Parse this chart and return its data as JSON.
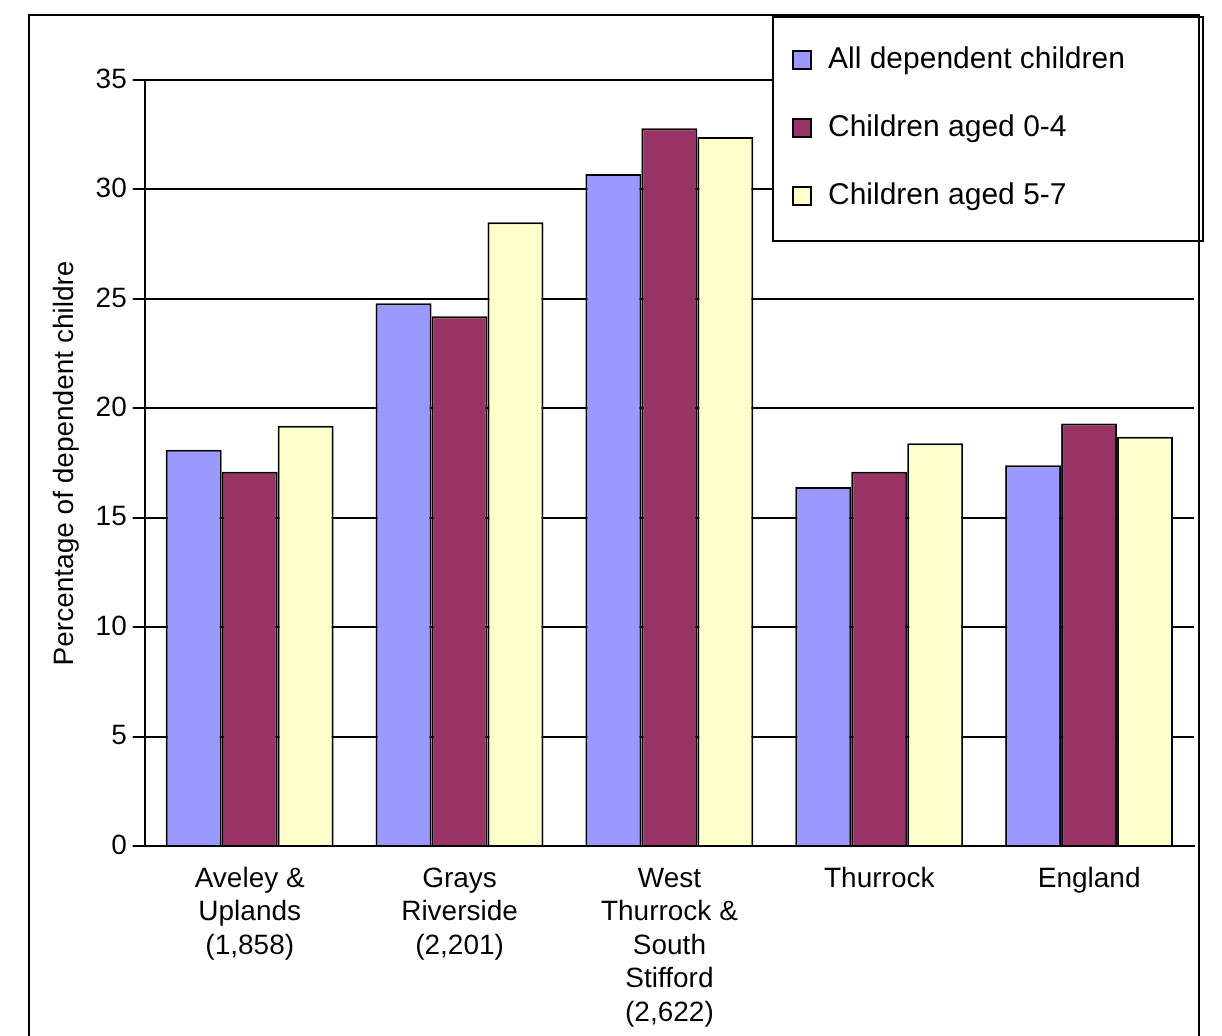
{
  "chart_data": {
    "type": "bar",
    "ylabel": "Percentage of dependent childre",
    "categories": [
      "Aveley &\nUplands\n(1,858)",
      "Grays\nRiverside\n(2,201)",
      "West\nThurrock &\nSouth\nStifford\n(2,622)",
      "Thurrock",
      "England"
    ],
    "series": [
      {
        "name": "All dependent children",
        "color": "#9999ff",
        "values": [
          18.1,
          24.8,
          30.7,
          16.4,
          17.4
        ]
      },
      {
        "name": "Children aged 0-4",
        "color": "#993366",
        "values": [
          17.1,
          24.2,
          32.8,
          17.1,
          19.3
        ]
      },
      {
        "name": "Children aged 5-7",
        "color": "#ffffcc",
        "values": [
          19.2,
          28.5,
          32.4,
          18.4,
          18.7
        ]
      }
    ],
    "ylim": [
      0,
      35
    ],
    "yticks": [
      0,
      5,
      10,
      15,
      20,
      25,
      30,
      35
    ],
    "grid": "y",
    "legend": "top right"
  }
}
